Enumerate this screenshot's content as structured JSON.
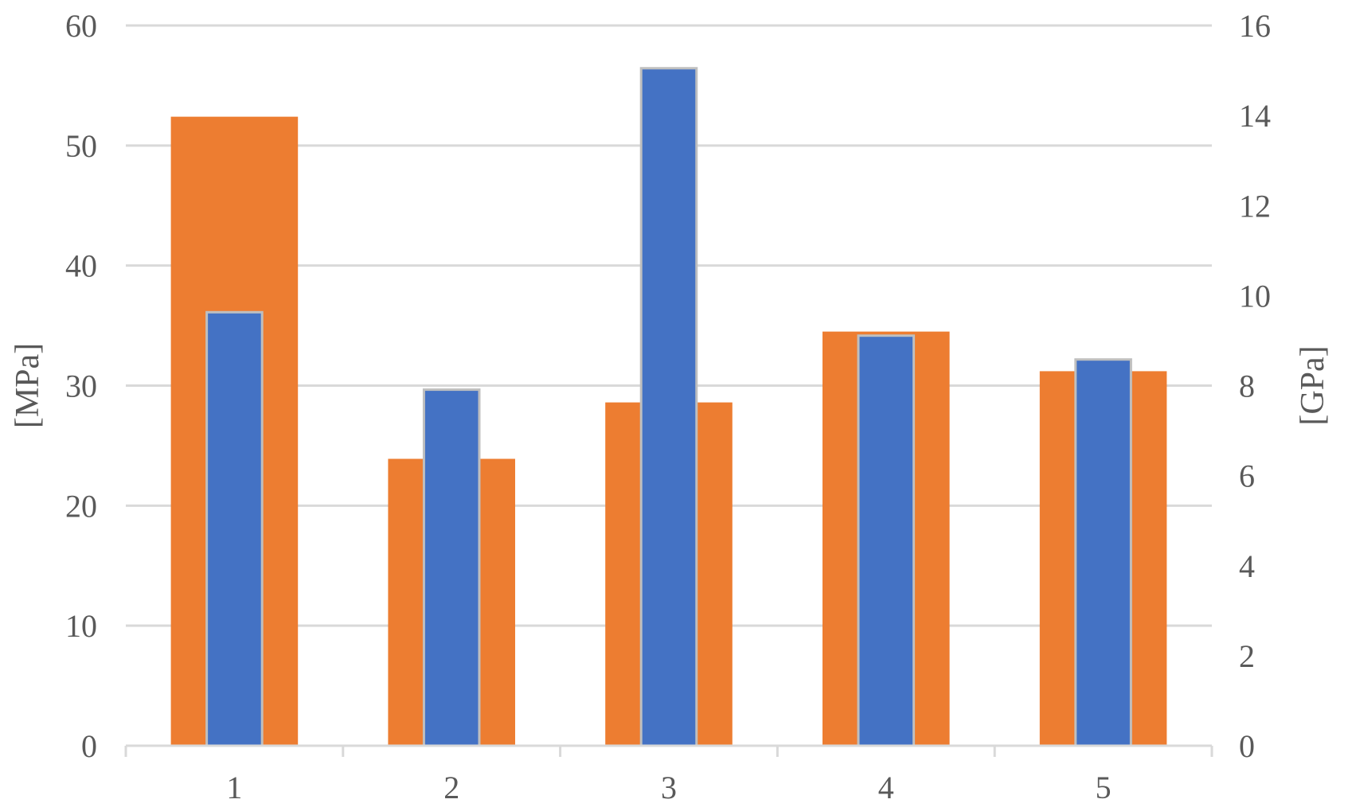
{
  "chart_data": {
    "type": "bar",
    "categories": [
      "1",
      "2",
      "3",
      "4",
      "5"
    ],
    "series": [
      {
        "axis": "left",
        "color": "#ED7D31",
        "values": [
          52.4,
          23.9,
          28.6,
          34.5,
          31.2
        ]
      },
      {
        "axis": "right",
        "color": "#4472C4",
        "edge_color": "#BFBFBF",
        "values": [
          9.63,
          7.91,
          15.05,
          9.11,
          8.58
        ]
      }
    ],
    "y_left": {
      "label": "[MPa]",
      "range": [
        0,
        60
      ],
      "ticks": [
        "0",
        "10",
        "20",
        "30",
        "40",
        "50",
        "60"
      ]
    },
    "y_right": {
      "label": "[GPa]",
      "range": [
        0,
        16
      ],
      "ticks": [
        "0",
        "2",
        "4",
        "6",
        "8",
        "10",
        "12",
        "14",
        "16"
      ]
    },
    "grid": true,
    "legend": "none",
    "gridline_color": "#D9D9D9",
    "text_color": "#595959"
  }
}
